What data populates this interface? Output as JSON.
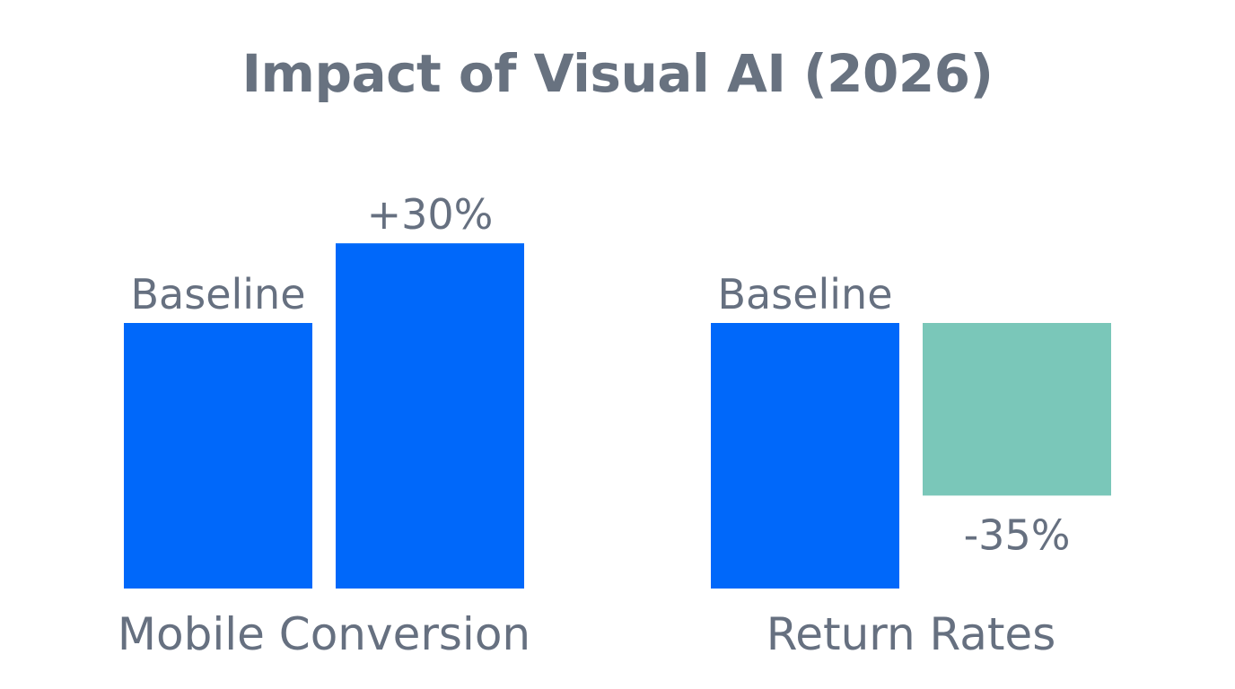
{
  "chart_data": {
    "type": "bar",
    "title": "Impact of Visual AI (2026)",
    "xlabel": "",
    "ylabel": "",
    "grid": false,
    "groups": [
      {
        "category": "Mobile Conversion",
        "bars": [
          {
            "label": "Baseline",
            "value": 100,
            "color": "#0068fa"
          },
          {
            "label": "+30%",
            "value": 130,
            "color": "#0068fa"
          }
        ]
      },
      {
        "category": "Return Rates",
        "bars": [
          {
            "label": "Baseline",
            "value": 100,
            "color": "#0068fa"
          },
          {
            "label": "-35%",
            "value": 65,
            "color": "#7ac7b9",
            "hanging": true
          }
        ]
      }
    ]
  }
}
